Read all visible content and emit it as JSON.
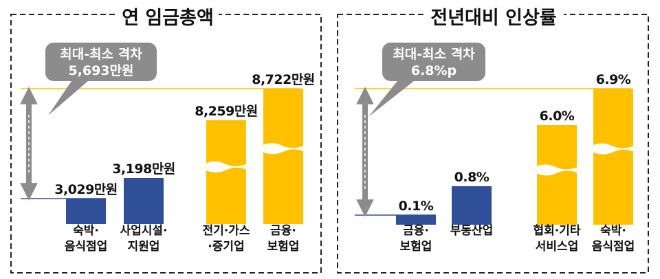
{
  "chart_data": [
    {
      "type": "bar",
      "title": "연 임금총액",
      "categories": [
        [
          "숙박·",
          "음식점업"
        ],
        [
          "사업시설·",
          "지원업"
        ],
        [
          "전기·가스",
          "·증기업"
        ],
        [
          "금융·",
          "보험업"
        ]
      ],
      "values": [
        3029,
        3198,
        8259,
        8722
      ],
      "value_labels": [
        "3,029만원",
        "3,198만원",
        "8,259만원",
        "8,722만원"
      ],
      "bar_colors": [
        "#2f4f98",
        "#2f4f98",
        "#ffc000",
        "#ffc000"
      ],
      "broken_axis_bars": [
        2,
        3
      ],
      "callout": {
        "line1": "최대-최소 격차",
        "line2": "5,693만원"
      }
    },
    {
      "type": "bar",
      "title": "전년대비 인상률",
      "categories": [
        [
          "금융·",
          "보험업"
        ],
        [
          "부동산업"
        ],
        [
          "협회·기타",
          "서비스업"
        ],
        [
          "숙박·",
          "음식점업"
        ]
      ],
      "values": [
        0.1,
        0.8,
        6.0,
        6.9
      ],
      "value_labels": [
        "0.1%",
        "0.8%",
        "6.0%",
        "6.9%"
      ],
      "bar_colors": [
        "#2f4f98",
        "#2f4f98",
        "#ffc000",
        "#ffc000"
      ],
      "broken_axis_bars": [
        2,
        3
      ],
      "callout": {
        "line1": "최대-최소 격차",
        "line2": "6.8%p"
      }
    }
  ]
}
